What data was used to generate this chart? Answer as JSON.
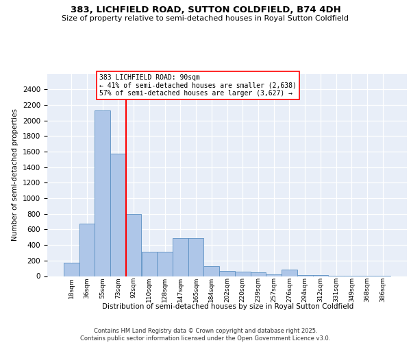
{
  "title": "383, LICHFIELD ROAD, SUTTON COLDFIELD, B74 4DH",
  "subtitle": "Size of property relative to semi-detached houses in Royal Sutton Coldfield",
  "xlabel": "Distribution of semi-detached houses by size in Royal Sutton Coldfield",
  "ylabel": "Number of semi-detached properties",
  "categories": [
    "18sqm",
    "36sqm",
    "55sqm",
    "73sqm",
    "92sqm",
    "110sqm",
    "128sqm",
    "147sqm",
    "165sqm",
    "184sqm",
    "202sqm",
    "220sqm",
    "239sqm",
    "257sqm",
    "276sqm",
    "294sqm",
    "312sqm",
    "331sqm",
    "349sqm",
    "368sqm",
    "386sqm"
  ],
  "values": [
    175,
    675,
    2125,
    1575,
    800,
    310,
    310,
    490,
    490,
    130,
    70,
    60,
    45,
    25,
    80,
    15,
    10,
    5,
    5,
    5,
    5
  ],
  "bar_color": "#aec6e8",
  "bar_edge_color": "#5a8fc2",
  "vline_x_idx": 4,
  "vline_color": "red",
  "annotation_title": "383 LICHFIELD ROAD: 90sqm",
  "annotation_line1": "← 41% of semi-detached houses are smaller (2,638)",
  "annotation_line2": "57% of semi-detached houses are larger (3,627) →",
  "ylim": [
    0,
    2600
  ],
  "yticks": [
    0,
    200,
    400,
    600,
    800,
    1000,
    1200,
    1400,
    1600,
    1800,
    2000,
    2200,
    2400
  ],
  "bg_color": "#e8eef8",
  "footer1": "Contains HM Land Registry data © Crown copyright and database right 2025.",
  "footer2": "Contains public sector information licensed under the Open Government Licence v3.0."
}
